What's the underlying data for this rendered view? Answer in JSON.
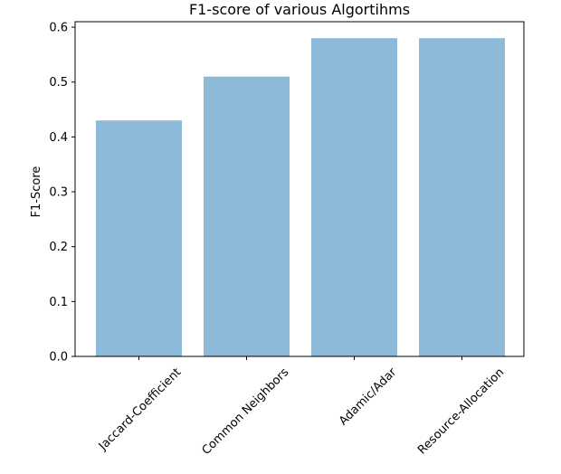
{
  "chart_data": {
    "type": "bar",
    "title": "F1-score of various Algortihms",
    "xlabel": "",
    "ylabel": "F1-Score",
    "categories": [
      "Jaccard-Coefficient",
      "Common Neighbors",
      "Adamic/Adar",
      "Resource-Allocation"
    ],
    "values": [
      0.43,
      0.51,
      0.58,
      0.58
    ],
    "ylim": [
      0,
      0.61
    ],
    "yticks": [
      "0.0",
      "0.1",
      "0.2",
      "0.3",
      "0.4",
      "0.5",
      "0.6"
    ],
    "bar_color": "#8DBAD9",
    "grid": false,
    "legend": "none"
  }
}
